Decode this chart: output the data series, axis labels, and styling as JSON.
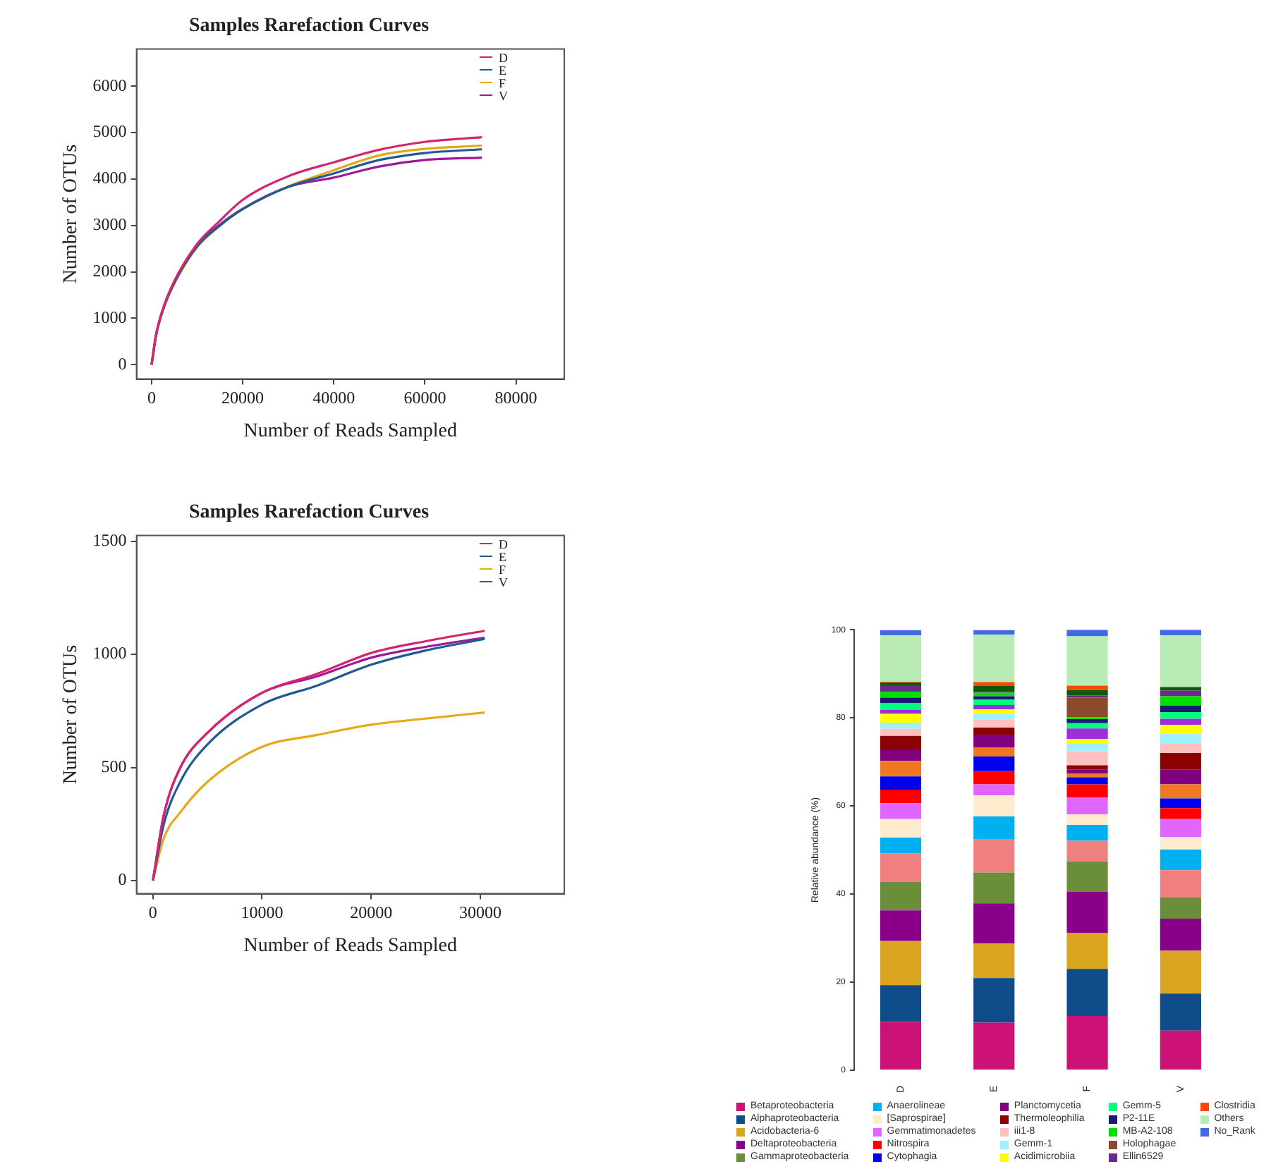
{
  "chart_data": [
    {
      "type": "line",
      "title": "Samples Rarefaction Curves",
      "xlabel": "Number of Reads Sampled",
      "ylabel": "Number of OTUs",
      "x": [
        0,
        1000,
        2500,
        5000,
        10000,
        15000,
        20000,
        30000,
        40000,
        50000,
        60000,
        72500
      ],
      "xlim": [
        -3300,
        90600
      ],
      "ylim": [
        -310,
        6800
      ],
      "xticks": [
        0,
        20000,
        40000,
        60000,
        80000
      ],
      "yticks": [
        0,
        1000,
        2000,
        3000,
        4000,
        5000,
        6000
      ],
      "legend": "top right",
      "series": [
        {
          "name": "D",
          "color": "#d6246e",
          "values": [
            0,
            650,
            1200,
            1800,
            2600,
            3100,
            3550,
            4060,
            4360,
            4630,
            4800,
            4900
          ]
        },
        {
          "name": "E",
          "color": "#1f5a96",
          "values": [
            0,
            640,
            1180,
            1760,
            2550,
            3000,
            3350,
            3830,
            4120,
            4410,
            4560,
            4640
          ]
        },
        {
          "name": "F",
          "color": "#e6a817",
          "values": [
            0,
            630,
            1170,
            1750,
            2530,
            2990,
            3350,
            3840,
            4190,
            4510,
            4650,
            4720
          ]
        },
        {
          "name": "V",
          "color": "#a0189a",
          "values": [
            0,
            650,
            1200,
            1790,
            2580,
            3020,
            3360,
            3830,
            4030,
            4270,
            4410,
            4460
          ]
        }
      ]
    },
    {
      "type": "line",
      "title": "Samples Rarefaction Curves",
      "xlabel": "Number of Reads Sampled",
      "ylabel": "Number of OTUs",
      "x": [
        0,
        1000,
        2500,
        5000,
        10000,
        15000,
        20000,
        25000,
        30400
      ],
      "xlim": [
        -1500,
        37700
      ],
      "ylim": [
        -58,
        1525
      ],
      "xticks": [
        0,
        10000,
        20000,
        30000
      ],
      "yticks": [
        0,
        500,
        1000,
        1500
      ],
      "legend": "top right",
      "series": [
        {
          "name": "D",
          "color": "#d6246e",
          "values": [
            0,
            290,
            498,
            653,
            830,
            913,
            1006,
            1058,
            1104
          ]
        },
        {
          "name": "E",
          "color": "#1f5a96",
          "values": [
            0,
            249,
            436,
            602,
            778,
            861,
            954,
            1017,
            1068
          ]
        },
        {
          "name": "F",
          "color": "#e6a817",
          "values": [
            0,
            187,
            301,
            436,
            591,
            643,
            689,
            716,
            743
          ]
        },
        {
          "name": "V",
          "color": "#a0189a",
          "values": [
            0,
            290,
            498,
            653,
            830,
            902,
            985,
            1033,
            1073
          ]
        }
      ]
    },
    {
      "type": "bar",
      "stacked": true,
      "ylabel": "Relative abundance (%)",
      "categories": [
        "D",
        "E",
        "F",
        "V"
      ],
      "ylim": [
        0,
        100
      ],
      "yticks": [
        0,
        20,
        40,
        60,
        80,
        100
      ],
      "legend": "bottom",
      "series": [
        {
          "name": "Betaproteobacteria",
          "color": "#cc1177",
          "values": [
            11.0,
            10.8,
            12.3,
            9.0
          ]
        },
        {
          "name": "Alphaproteobacteria",
          "color": "#0f4c8a",
          "values": [
            8.3,
            10.1,
            10.7,
            8.4
          ]
        },
        {
          "name": "Acidobacteria-6",
          "color": "#daa520",
          "values": [
            10.0,
            7.9,
            8.1,
            9.7
          ]
        },
        {
          "name": "Deltaproteobacteria",
          "color": "#8b008b",
          "values": [
            7.0,
            9.1,
            9.4,
            7.3
          ]
        },
        {
          "name": "Gammaproteobacteria",
          "color": "#6b8e3a",
          "values": [
            6.5,
            7.0,
            6.9,
            4.9
          ]
        },
        {
          "color": "#f08080",
          "values": [
            6.4,
            7.6,
            4.7,
            6.1
          ]
        },
        {
          "name": "Anaerolineae",
          "color": "#00b0f0",
          "values": [
            3.6,
            5.1,
            3.6,
            4.7
          ]
        },
        {
          "name": "[Saprospirae]",
          "color": "#ffebcd",
          "values": [
            4.2,
            4.8,
            2.4,
            2.8
          ]
        },
        {
          "name": "Gemmatimonadetes",
          "color": "#e066ff",
          "values": [
            3.6,
            2.5,
            3.8,
            4.1
          ]
        },
        {
          "name": "Nitrospira",
          "color": "#ff0000",
          "values": [
            3.1,
            3.0,
            3.0,
            2.5
          ]
        },
        {
          "name": "Cytophagia",
          "color": "#0000ee",
          "values": [
            3.0,
            3.3,
            1.6,
            2.2
          ]
        },
        {
          "color": "#f07820",
          "values": [
            3.5,
            2.1,
            0.8,
            3.2
          ]
        },
        {
          "name": "Planctomycetia",
          "color": "#800080",
          "values": [
            2.6,
            2.9,
            1.0,
            3.4
          ]
        },
        {
          "name": "Thermoleophilia",
          "color": "#8b0000",
          "values": [
            3.1,
            1.6,
            0.9,
            3.7
          ]
        },
        {
          "name": "iii1-8",
          "color": "#ffc0c0",
          "values": [
            1.6,
            1.8,
            3.2,
            2.2
          ]
        },
        {
          "name": "Gemm-1",
          "color": "#a0f0ff",
          "values": [
            1.4,
            1.3,
            1.7,
            2.1
          ]
        },
        {
          "name": "Acidimicrobiia",
          "color": "#ffff00",
          "values": [
            2.0,
            1.0,
            1.1,
            2.1
          ]
        },
        {
          "color": "#9b30d8",
          "values": [
            0.9,
            1.0,
            2.4,
            1.4
          ]
        },
        {
          "name": "Gemm-5",
          "color": "#00ff7f",
          "values": [
            1.5,
            1.3,
            1.2,
            1.5
          ]
        },
        {
          "name": "P2-11E",
          "color": "#191970",
          "values": [
            1.3,
            0.7,
            0.9,
            1.5
          ]
        },
        {
          "name": "MB-A2-108",
          "color": "#00e000",
          "values": [
            1.3,
            0.8,
            0.4,
            2.1
          ]
        },
        {
          "name": "Holophagae",
          "color": "#8b4a2b",
          "values": [
            0,
            0,
            4.5,
            0
          ]
        },
        {
          "name": "Ellin6529",
          "color": "#6a2a8a",
          "values": [
            1.5,
            0.4,
            0.5,
            1.3
          ]
        },
        {
          "color": "#0a5a0a",
          "values": [
            0.6,
            1.2,
            1.2,
            0.8
          ]
        },
        {
          "name": "Clostridia",
          "color": "#ff4500",
          "values": [
            0.2,
            0.8,
            1.0,
            0
          ]
        },
        {
          "name": "Others",
          "color": "#b8ecb4",
          "values": [
            10.5,
            10.8,
            11.2,
            11.7
          ]
        },
        {
          "name": "No_Rank",
          "color": "#4169e1",
          "values": [
            1.2,
            1.0,
            1.5,
            1.3
          ]
        }
      ]
    }
  ]
}
